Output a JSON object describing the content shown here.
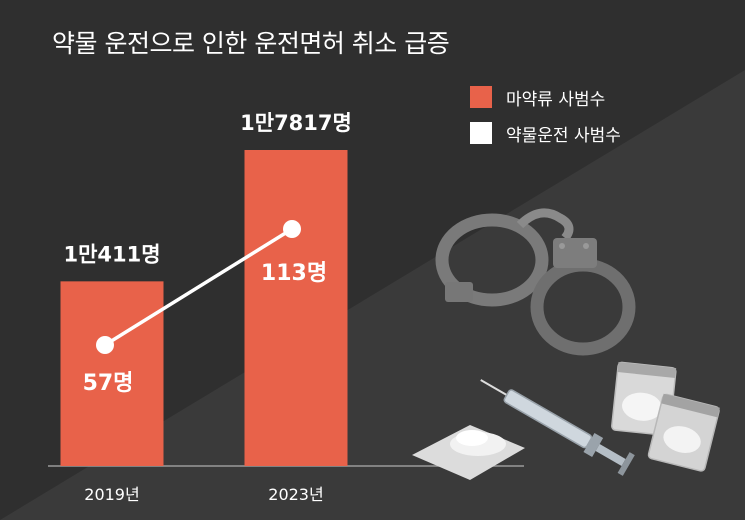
{
  "title": "약물 운전으로 인한 운전면허 취소 급증",
  "colors": {
    "background": "#2f2f2f",
    "background_light": "#3a3a3a",
    "bar": "#e8624a",
    "line": "#ffffff"
  },
  "legend": {
    "items": [
      {
        "label": "마약류 사범수",
        "color": "#e8624a"
      },
      {
        "label": "약물운전 사범수",
        "color": "#ffffff"
      }
    ]
  },
  "chart_data": {
    "type": "bar",
    "categories": [
      "2019년",
      "2023년"
    ],
    "series": [
      {
        "name": "마약류 사범수",
        "type": "bar",
        "values": [
          10411,
          17817
        ],
        "labels": [
          "1만411명",
          "1만7817명"
        ]
      },
      {
        "name": "약물운전 사범수",
        "type": "line",
        "values": [
          57,
          113
        ],
        "labels": [
          "57명",
          "113명"
        ]
      }
    ],
    "xlabel": "",
    "ylabel": "",
    "grid": false,
    "legend_position": "top-right"
  },
  "illustration": {
    "icons": [
      "handcuffs-icon",
      "syringe-icon",
      "drug-powder-icon",
      "pill-bag-icon"
    ]
  }
}
